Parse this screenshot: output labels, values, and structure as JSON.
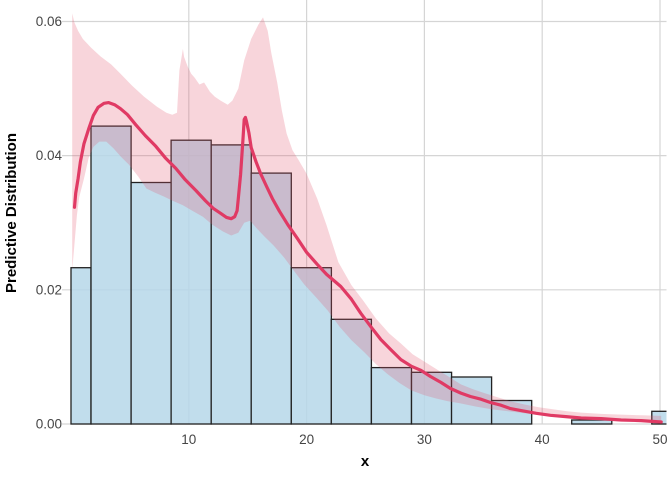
{
  "figure": {
    "xlabel": "x",
    "ylabel": "Predictive Distribution"
  },
  "colors": {
    "background": "#ffffff",
    "gridline": "#d5d5d5",
    "bar_fill": "rgba(182,215,233,0.85)",
    "bar_stroke": "#222222",
    "ribbon_fill": "rgba(229,88,110,0.25)",
    "line": "#e03a64",
    "tick_label": "#454545",
    "axis_title": "#000000"
  },
  "chart_data": {
    "type": "bar",
    "subtype": "histogram-with-density-line-and-ribbon",
    "title": "",
    "xlabel": "x",
    "ylabel": "Predictive Distribution",
    "xlim": [
      0,
      50.55
    ],
    "ylim": [
      0,
      0.0632
    ],
    "grid": "major-only",
    "legend": "none",
    "x_ticks": {
      "values": [
        10,
        20,
        30,
        40,
        50
      ],
      "labels": [
        "10",
        "20",
        "30",
        "40",
        "50"
      ]
    },
    "y_ticks": {
      "values": [
        0,
        0.02,
        0.04,
        0.06
      ],
      "labels": [
        "0.00",
        "0.02",
        "0.04",
        "0.06"
      ]
    },
    "histogram": {
      "bin_edges": [
        0,
        1.7,
        5.1,
        8.5,
        11.9,
        15.3,
        18.7,
        22.1,
        25.5,
        28.9,
        32.3,
        35.7,
        39.1,
        42.5,
        45.9,
        49.3,
        52.7
      ],
      "densities": [
        0.0233,
        0.0444,
        0.036,
        0.0423,
        0.0416,
        0.0374,
        0.0233,
        0.0156,
        0.0084,
        0.0077,
        0.007,
        0.0035,
        0,
        0.0006,
        0,
        0.0019
      ],
      "last_bin_clipped_at_panel_edge": true
    },
    "predictive_line": {
      "points": [
        [
          0.3,
          0.0323
        ],
        [
          0.4,
          0.0344
        ],
        [
          0.6,
          0.0366
        ],
        [
          0.8,
          0.0391
        ],
        [
          1.1,
          0.0418
        ],
        [
          1.5,
          0.044
        ],
        [
          1.9,
          0.046
        ],
        [
          2.3,
          0.0472
        ],
        [
          2.8,
          0.0478
        ],
        [
          3.2,
          0.0479
        ],
        [
          3.7,
          0.0476
        ],
        [
          4.2,
          0.047
        ],
        [
          4.8,
          0.0461
        ],
        [
          5.5,
          0.0446
        ],
        [
          6.3,
          0.043
        ],
        [
          7.2,
          0.0414
        ],
        [
          8.0,
          0.0397
        ],
        [
          8.9,
          0.0381
        ],
        [
          9.7,
          0.0364
        ],
        [
          10.6,
          0.0348
        ],
        [
          11.4,
          0.0333
        ],
        [
          12.1,
          0.0321
        ],
        [
          12.7,
          0.0314
        ],
        [
          13.2,
          0.0308
        ],
        [
          13.6,
          0.0306
        ],
        [
          13.9,
          0.0309
        ],
        [
          14.1,
          0.0318
        ],
        [
          14.2,
          0.0336
        ],
        [
          14.4,
          0.0372
        ],
        [
          14.6,
          0.0425
        ],
        [
          14.7,
          0.0454
        ],
        [
          14.8,
          0.0457
        ],
        [
          14.9,
          0.0451
        ],
        [
          15.1,
          0.0434
        ],
        [
          15.3,
          0.0412
        ],
        [
          15.7,
          0.0391
        ],
        [
          16.1,
          0.0373
        ],
        [
          16.6,
          0.0354
        ],
        [
          17.1,
          0.0336
        ],
        [
          17.7,
          0.0317
        ],
        [
          18.4,
          0.0297
        ],
        [
          19.2,
          0.0277
        ],
        [
          20.0,
          0.0256
        ],
        [
          20.9,
          0.0238
        ],
        [
          21.7,
          0.0223
        ],
        [
          22.9,
          0.0205
        ],
        [
          23.8,
          0.0186
        ],
        [
          24.6,
          0.0165
        ],
        [
          25.5,
          0.0144
        ],
        [
          26.3,
          0.0126
        ],
        [
          27.2,
          0.011
        ],
        [
          28.0,
          0.0096
        ],
        [
          28.9,
          0.0086
        ],
        [
          29.7,
          0.008
        ],
        [
          30.5,
          0.0071
        ],
        [
          31.4,
          0.0062
        ],
        [
          32.2,
          0.0053
        ],
        [
          33.1,
          0.0046
        ],
        [
          33.9,
          0.0041
        ],
        [
          34.8,
          0.0037
        ],
        [
          35.6,
          0.0032
        ],
        [
          36.5,
          0.0028
        ],
        [
          37.3,
          0.0023
        ],
        [
          38.2,
          0.002
        ],
        [
          39.5,
          0.0016
        ],
        [
          40.7,
          0.0013
        ],
        [
          42.0,
          0.0011
        ],
        [
          43.3,
          0.0009
        ],
        [
          45.0,
          0.0008
        ],
        [
          46.7,
          0.0006
        ],
        [
          48.4,
          0.0005
        ],
        [
          50.1,
          0.0003
        ]
      ]
    },
    "ribbon": {
      "upper": [
        [
          0.1,
          0.0612
        ],
        [
          0.3,
          0.0598
        ],
        [
          0.6,
          0.0586
        ],
        [
          1.0,
          0.0574
        ],
        [
          1.7,
          0.0561
        ],
        [
          2.5,
          0.0548
        ],
        [
          3.4,
          0.0536
        ],
        [
          4.2,
          0.0522
        ],
        [
          5.2,
          0.0504
        ],
        [
          6.2,
          0.0488
        ],
        [
          7.3,
          0.0473
        ],
        [
          8.1,
          0.0464
        ],
        [
          8.6,
          0.0461
        ],
        [
          9.0,
          0.0464
        ],
        [
          9.2,
          0.0527
        ],
        [
          9.5,
          0.0559
        ],
        [
          9.6,
          0.0547
        ],
        [
          9.9,
          0.0533
        ],
        [
          10.2,
          0.0522
        ],
        [
          10.5,
          0.0516
        ],
        [
          10.9,
          0.0506
        ],
        [
          11.3,
          0.0509
        ],
        [
          11.8,
          0.0495
        ],
        [
          12.2,
          0.0488
        ],
        [
          12.7,
          0.0482
        ],
        [
          13.3,
          0.0476
        ],
        [
          13.7,
          0.0482
        ],
        [
          14.2,
          0.05
        ],
        [
          14.7,
          0.0542
        ],
        [
          15.3,
          0.0574
        ],
        [
          15.9,
          0.0595
        ],
        [
          16.3,
          0.0606
        ],
        [
          16.7,
          0.0586
        ],
        [
          17.0,
          0.0553
        ],
        [
          17.5,
          0.0509
        ],
        [
          17.9,
          0.0467
        ],
        [
          18.3,
          0.0433
        ],
        [
          18.8,
          0.0408
        ],
        [
          19.3,
          0.0394
        ],
        [
          20.0,
          0.0373
        ],
        [
          20.9,
          0.0336
        ],
        [
          21.7,
          0.0296
        ],
        [
          22.7,
          0.0241
        ],
        [
          23.8,
          0.0207
        ],
        [
          24.8,
          0.0184
        ],
        [
          25.9,
          0.0157
        ],
        [
          27.0,
          0.0135
        ],
        [
          28.0,
          0.012
        ],
        [
          29.0,
          0.0104
        ],
        [
          30.0,
          0.0093
        ],
        [
          31.1,
          0.0081
        ],
        [
          32.1,
          0.007
        ],
        [
          33.1,
          0.0059
        ],
        [
          34.1,
          0.0052
        ],
        [
          35.1,
          0.0046
        ],
        [
          36.2,
          0.004
        ],
        [
          37.3,
          0.0034
        ],
        [
          38.5,
          0.0029
        ],
        [
          39.7,
          0.0025
        ],
        [
          40.9,
          0.0022
        ],
        [
          42.1,
          0.0019
        ],
        [
          43.3,
          0.0017
        ],
        [
          45.0,
          0.0015
        ],
        [
          46.7,
          0.0014
        ],
        [
          48.4,
          0.0013
        ],
        [
          50.1,
          0.0012
        ]
      ],
      "lower": [
        [
          0.1,
          0.0229
        ],
        [
          0.3,
          0.0269
        ],
        [
          0.5,
          0.0311
        ],
        [
          0.7,
          0.0338
        ],
        [
          1.1,
          0.0366
        ],
        [
          1.5,
          0.0397
        ],
        [
          1.9,
          0.0413
        ],
        [
          2.4,
          0.0421
        ],
        [
          3.0,
          0.0421
        ],
        [
          3.6,
          0.0411
        ],
        [
          4.2,
          0.0399
        ],
        [
          4.9,
          0.0387
        ],
        [
          5.7,
          0.0369
        ],
        [
          6.4,
          0.0351
        ],
        [
          7.1,
          0.0345
        ],
        [
          7.9,
          0.0339
        ],
        [
          8.6,
          0.0333
        ],
        [
          9.5,
          0.0326
        ],
        [
          10.3,
          0.0318
        ],
        [
          11.2,
          0.0309
        ],
        [
          12.0,
          0.0297
        ],
        [
          12.9,
          0.0287
        ],
        [
          13.6,
          0.0281
        ],
        [
          14.2,
          0.0285
        ],
        [
          14.7,
          0.03
        ],
        [
          15.2,
          0.0303
        ],
        [
          15.8,
          0.0291
        ],
        [
          16.4,
          0.028
        ],
        [
          17.2,
          0.0266
        ],
        [
          18.1,
          0.0248
        ],
        [
          18.9,
          0.0229
        ],
        [
          19.8,
          0.0208
        ],
        [
          20.8,
          0.0189
        ],
        [
          21.8,
          0.0169
        ],
        [
          22.8,
          0.0145
        ],
        [
          23.8,
          0.0125
        ],
        [
          24.9,
          0.0107
        ],
        [
          25.9,
          0.0089
        ],
        [
          26.9,
          0.0074
        ],
        [
          27.9,
          0.0061
        ],
        [
          28.9,
          0.005
        ],
        [
          30.0,
          0.0043
        ],
        [
          31.0,
          0.0038
        ],
        [
          32.0,
          0.0034
        ],
        [
          33.0,
          0.0031
        ],
        [
          34.4,
          0.0026
        ],
        [
          35.7,
          0.0022
        ],
        [
          37.1,
          0.0019
        ],
        [
          38.5,
          0.0016
        ],
        [
          39.8,
          0.0014
        ],
        [
          41.2,
          0.0011
        ],
        [
          42.9,
          0.0009
        ],
        [
          44.6,
          0.0007
        ],
        [
          46.3,
          0.00055
        ],
        [
          48.0,
          0.0004
        ],
        [
          50.1,
          0.00025
        ]
      ]
    }
  }
}
